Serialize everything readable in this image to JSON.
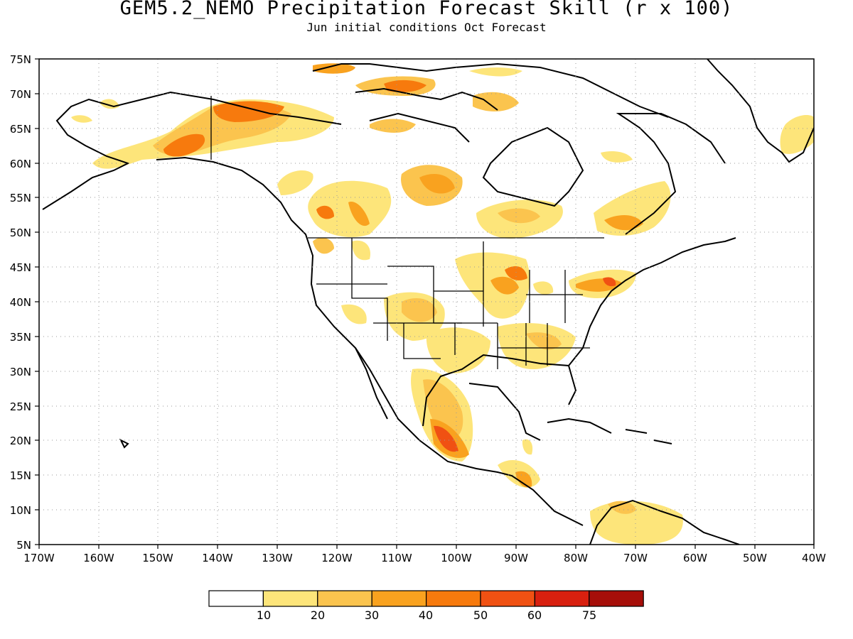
{
  "header": {
    "title": "GEM5.2_NEMO Precipitation Forecast Skill (r x 100)",
    "subtitle": "Jun initial conditions  Oct Forecast"
  },
  "map": {
    "lon_range": [
      -170,
      -40
    ],
    "lat_range": [
      5,
      75
    ],
    "lon_ticks": [
      "170W",
      "160W",
      "150W",
      "140W",
      "130W",
      "120W",
      "110W",
      "100W",
      "90W",
      "80W",
      "70W",
      "60W",
      "50W",
      "40W"
    ],
    "lat_ticks": [
      "75N",
      "70N",
      "65N",
      "60N",
      "55N",
      "50N",
      "45N",
      "40N",
      "35N",
      "30N",
      "25N",
      "20N",
      "15N",
      "10N",
      "5N"
    ],
    "gridlines": "dotted"
  },
  "colorbar": {
    "labels": [
      "10",
      "20",
      "30",
      "40",
      "50",
      "60",
      "75"
    ],
    "colors": [
      "#ffffff",
      "#fde57a",
      "#fbc44e",
      "#f9a21f",
      "#f77a0d",
      "#f05113",
      "#d8200f",
      "#a60e09"
    ]
  }
}
